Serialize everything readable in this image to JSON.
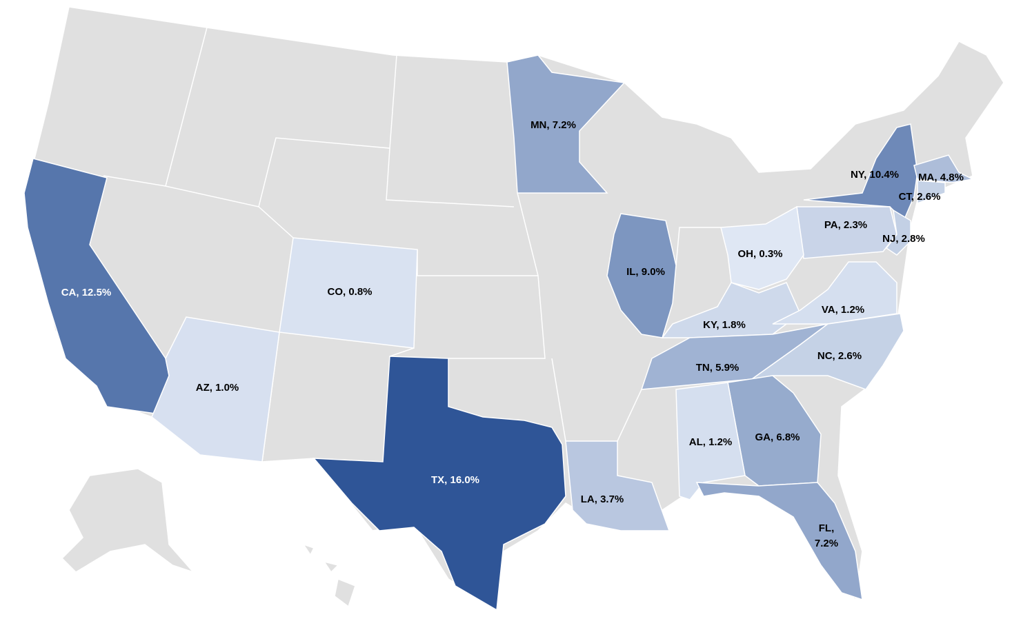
{
  "chart_data": {
    "type": "choropleth",
    "values": [
      12.5,
      16.0,
      1.0,
      0.8,
      7.2,
      9.0,
      10.4,
      4.8,
      2.6,
      2.3,
      2.8,
      0.3,
      1.8,
      1.2,
      5.9,
      2.6,
      6.8,
      1.2,
      3.7,
      7.2
    ],
    "value_labels": [
      "CA, 12.5%",
      "TX, 16.0%",
      "AZ, 1.0%",
      "CO, 0.8%",
      "MN, 7.2%",
      "IL, 9.0%",
      "NY, 10.4%",
      "MA, 4.8%",
      "CT, 2.6%",
      "PA, 2.3%",
      "NJ, 2.8%",
      "OH, 0.3%",
      "KY, 1.8%",
      "VA, 1.2%",
      "TN, 5.9%",
      "NC, 2.6%",
      "GA, 6.8%",
      "AL, 1.2%",
      "LA, 3.7%",
      "FL, 7.2%"
    ],
    "color_range": [
      "#dfe7f4",
      "#2f5597"
    ],
    "base_color": "#e0e0e0"
  }
}
